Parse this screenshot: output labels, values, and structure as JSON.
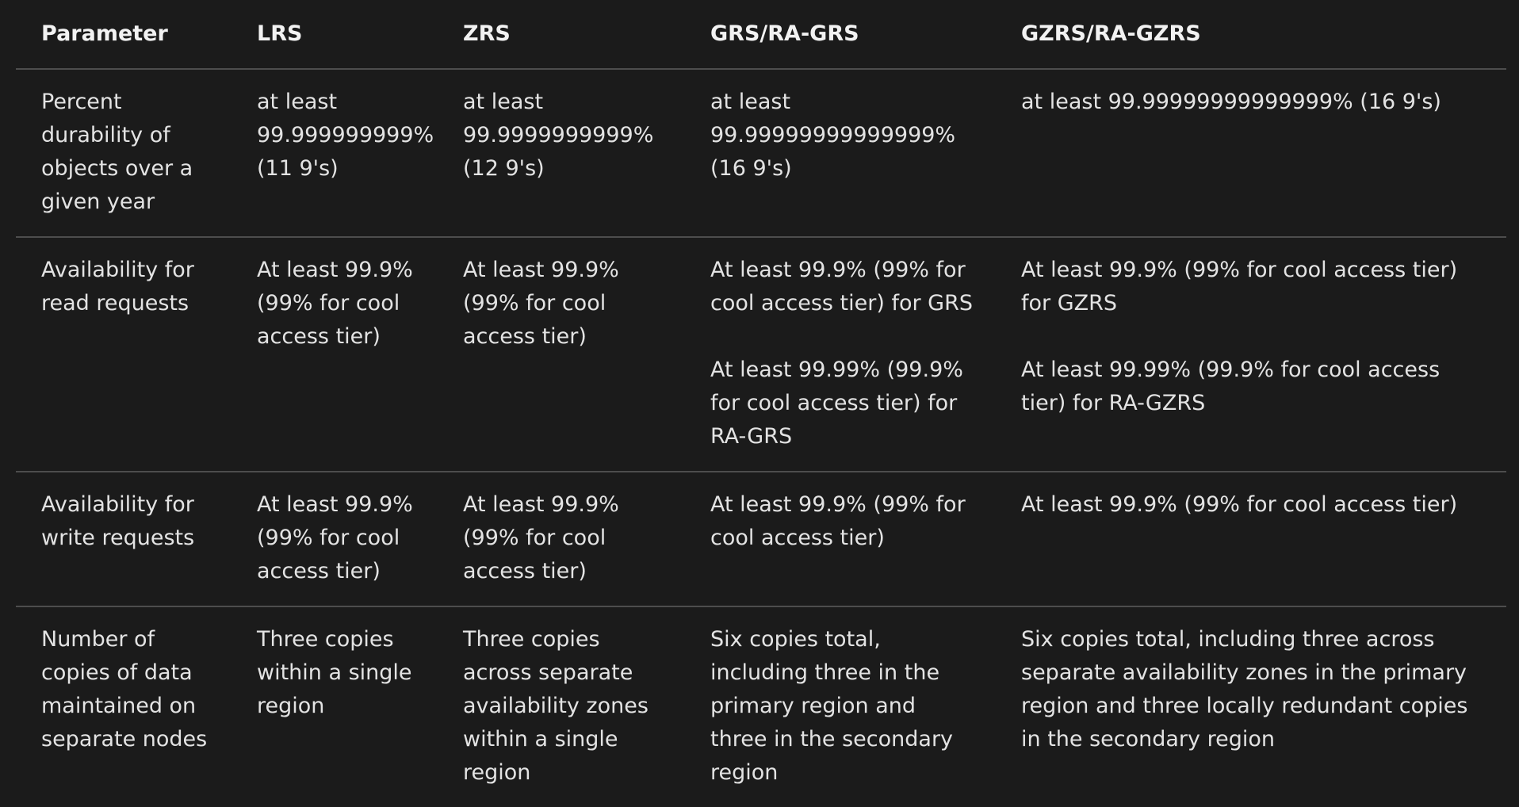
{
  "table": {
    "headers": [
      "Parameter",
      "LRS",
      "ZRS",
      "GRS/RA-GRS",
      "GZRS/RA-GZRS"
    ],
    "rows": [
      {
        "parameter": "Percent durability of objects over a given year",
        "lrs": "at least 99.999999999% (11 9's)",
        "zrs": "at least 99.9999999999% (12 9's)",
        "grs": [
          "at least 99.99999999999999% (16 9's)"
        ],
        "gzrs": [
          "at least 99.99999999999999% (16 9's)"
        ]
      },
      {
        "parameter": "Availability for read requests",
        "lrs": "At least 99.9% (99% for cool access tier)",
        "zrs": "At least 99.9% (99% for cool access tier)",
        "grs": [
          "At least 99.9% (99% for cool access tier) for GRS",
          "At least 99.99% (99.9% for cool access tier) for RA-GRS"
        ],
        "gzrs": [
          "At least 99.9% (99% for cool access tier) for GZRS",
          "At least 99.99% (99.9% for cool access tier) for RA-GZRS"
        ]
      },
      {
        "parameter": "Availability for write requests",
        "lrs": "At least 99.9% (99% for cool access tier)",
        "zrs": "At least 99.9% (99% for cool access tier)",
        "grs": [
          "At least 99.9% (99% for cool access tier)"
        ],
        "gzrs": [
          "At least 99.9% (99% for cool access tier)"
        ]
      },
      {
        "parameter": "Number of copies of data maintained on separate nodes",
        "lrs": "Three copies within a single region",
        "zrs": "Three copies across separate availability zones within a single region",
        "grs": [
          "Six copies total, including three in the primary region and three in the secondary region"
        ],
        "gzrs": [
          "Six copies total, including three across separate availability zones in the primary region and three locally redundant copies in the secondary region"
        ]
      }
    ]
  }
}
